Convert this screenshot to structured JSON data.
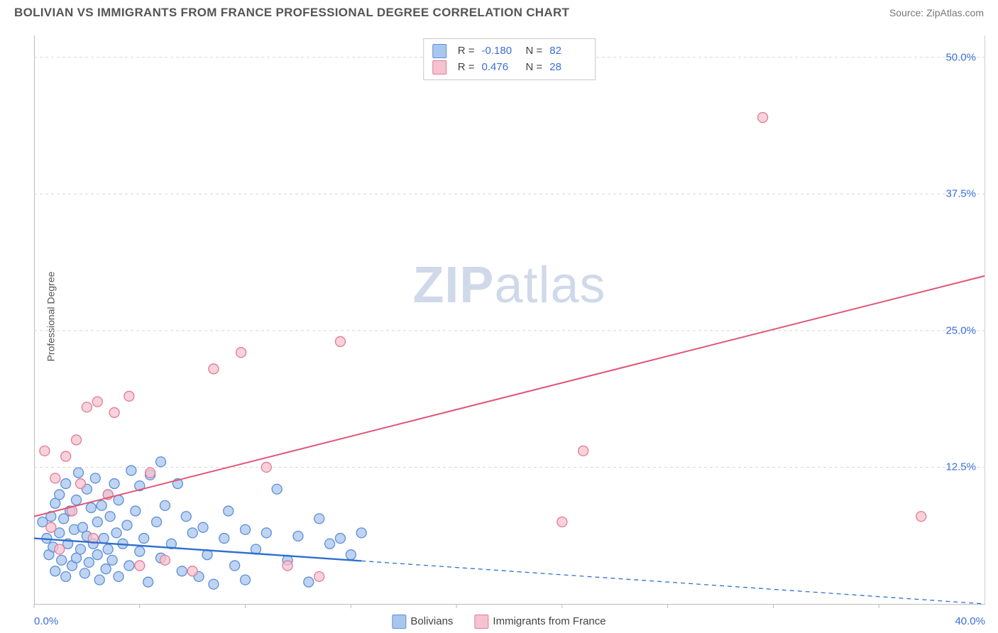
{
  "header": {
    "title": "BOLIVIAN VS IMMIGRANTS FROM FRANCE PROFESSIONAL DEGREE CORRELATION CHART",
    "source": "Source: ZipAtlas.com"
  },
  "ylabel": "Professional Degree",
  "watermark_a": "ZIP",
  "watermark_b": "atlas",
  "chart": {
    "type": "scatter",
    "xlim": [
      0,
      45
    ],
    "ylim": [
      0,
      52
    ],
    "ytick_values": [
      12.5,
      25.0,
      37.5,
      50.0
    ],
    "ytick_labels": [
      "12.5%",
      "25.0%",
      "37.5%",
      "50.0%"
    ],
    "xtick_values": [
      0,
      5,
      10,
      15,
      20,
      25,
      30,
      35,
      40
    ],
    "xaxis_label_left": "0.0%",
    "xaxis_label_right": "40.0%",
    "grid_color": "#d8d8d8",
    "axis_color": "#bbbbbb",
    "background_color": "#ffffff",
    "tick_label_color": "#3b6fd6",
    "series": {
      "bolivians": {
        "label": "Bolivians",
        "marker_fill": "#a9c6ed",
        "marker_stroke": "#5b8fd6",
        "marker_radius": 7,
        "line_color": "#2f6fd0",
        "line_width": 2.4,
        "dash_color": "#2f6fd0",
        "regression": {
          "x1": 0,
          "y1": 6.0,
          "x2": 45,
          "y2": 0.0,
          "solid_until_x": 15.5
        },
        "R": "-0.180",
        "N": "82",
        "points": [
          [
            0.4,
            7.5
          ],
          [
            0.6,
            6.0
          ],
          [
            0.7,
            4.5
          ],
          [
            0.8,
            8.0
          ],
          [
            0.9,
            5.2
          ],
          [
            1.0,
            9.2
          ],
          [
            1.0,
            3.0
          ],
          [
            1.2,
            6.5
          ],
          [
            1.2,
            10.0
          ],
          [
            1.3,
            4.0
          ],
          [
            1.4,
            7.8
          ],
          [
            1.5,
            11.0
          ],
          [
            1.5,
            2.5
          ],
          [
            1.6,
            5.5
          ],
          [
            1.7,
            8.5
          ],
          [
            1.8,
            3.5
          ],
          [
            1.9,
            6.8
          ],
          [
            2.0,
            9.5
          ],
          [
            2.0,
            4.2
          ],
          [
            2.1,
            12.0
          ],
          [
            2.2,
            5.0
          ],
          [
            2.3,
            7.0
          ],
          [
            2.4,
            2.8
          ],
          [
            2.5,
            10.5
          ],
          [
            2.5,
            6.2
          ],
          [
            2.6,
            3.8
          ],
          [
            2.7,
            8.8
          ],
          [
            2.8,
            5.5
          ],
          [
            2.9,
            11.5
          ],
          [
            3.0,
            4.5
          ],
          [
            3.0,
            7.5
          ],
          [
            3.1,
            2.2
          ],
          [
            3.2,
            9.0
          ],
          [
            3.3,
            6.0
          ],
          [
            3.4,
            3.2
          ],
          [
            3.5,
            10.0
          ],
          [
            3.5,
            5.0
          ],
          [
            3.6,
            8.0
          ],
          [
            3.7,
            4.0
          ],
          [
            3.8,
            11.0
          ],
          [
            3.9,
            6.5
          ],
          [
            4.0,
            2.5
          ],
          [
            4.0,
            9.5
          ],
          [
            4.2,
            5.5
          ],
          [
            4.4,
            7.2
          ],
          [
            4.5,
            3.5
          ],
          [
            4.6,
            12.2
          ],
          [
            4.8,
            8.5
          ],
          [
            5.0,
            4.8
          ],
          [
            5.0,
            10.8
          ],
          [
            5.2,
            6.0
          ],
          [
            5.4,
            2.0
          ],
          [
            5.5,
            11.8
          ],
          [
            5.8,
            7.5
          ],
          [
            6.0,
            4.2
          ],
          [
            6.0,
            13.0
          ],
          [
            6.2,
            9.0
          ],
          [
            6.5,
            5.5
          ],
          [
            6.8,
            11.0
          ],
          [
            7.0,
            3.0
          ],
          [
            7.2,
            8.0
          ],
          [
            7.5,
            6.5
          ],
          [
            7.8,
            2.5
          ],
          [
            8.0,
            7.0
          ],
          [
            8.2,
            4.5
          ],
          [
            8.5,
            1.8
          ],
          [
            9.0,
            6.0
          ],
          [
            9.2,
            8.5
          ],
          [
            9.5,
            3.5
          ],
          [
            10.0,
            6.8
          ],
          [
            10.0,
            2.2
          ],
          [
            10.5,
            5.0
          ],
          [
            11.0,
            6.5
          ],
          [
            11.5,
            10.5
          ],
          [
            12.0,
            4.0
          ],
          [
            12.5,
            6.2
          ],
          [
            13.0,
            2.0
          ],
          [
            13.5,
            7.8
          ],
          [
            14.0,
            5.5
          ],
          [
            14.5,
            6.0
          ],
          [
            15.0,
            4.5
          ],
          [
            15.5,
            6.5
          ]
        ]
      },
      "france": {
        "label": "Immigrants from France",
        "marker_fill": "#f4c3cf",
        "marker_stroke": "#e47a94",
        "marker_radius": 7,
        "line_color": "#e05577",
        "line_width": 2,
        "regression": {
          "x1": 0,
          "y1": 8.0,
          "x2": 45,
          "y2": 30.0
        },
        "R": "0.476",
        "N": "28",
        "points": [
          [
            0.5,
            14.0
          ],
          [
            0.8,
            7.0
          ],
          [
            1.0,
            11.5
          ],
          [
            1.2,
            5.0
          ],
          [
            1.5,
            13.5
          ],
          [
            1.8,
            8.5
          ],
          [
            2.0,
            15.0
          ],
          [
            2.2,
            11.0
          ],
          [
            2.5,
            18.0
          ],
          [
            2.8,
            6.0
          ],
          [
            3.0,
            18.5
          ],
          [
            3.5,
            10.0
          ],
          [
            3.8,
            17.5
          ],
          [
            4.5,
            19.0
          ],
          [
            5.0,
            3.5
          ],
          [
            5.5,
            12.0
          ],
          [
            6.2,
            4.0
          ],
          [
            7.5,
            3.0
          ],
          [
            8.5,
            21.5
          ],
          [
            9.8,
            23.0
          ],
          [
            11.0,
            12.5
          ],
          [
            12.0,
            3.5
          ],
          [
            13.5,
            2.5
          ],
          [
            14.5,
            24.0
          ],
          [
            25.0,
            7.5
          ],
          [
            26.0,
            14.0
          ],
          [
            34.5,
            44.5
          ],
          [
            42.0,
            8.0
          ]
        ]
      }
    }
  },
  "stats_box": {
    "rows": [
      {
        "swatch_fill": "#a9c6ed",
        "swatch_stroke": "#5b8fd6",
        "r_label": "R =",
        "r_val": "-0.180",
        "n_label": "N =",
        "n_val": "82"
      },
      {
        "swatch_fill": "#f4c3cf",
        "swatch_stroke": "#e47a94",
        "r_label": "R =",
        "r_val": " 0.476",
        "n_label": "N =",
        "n_val": "28"
      }
    ]
  },
  "legend_bottom": [
    {
      "swatch_fill": "#a9c6ed",
      "swatch_stroke": "#5b8fd6",
      "label": "Bolivians"
    },
    {
      "swatch_fill": "#f4c3cf",
      "swatch_stroke": "#e47a94",
      "label": "Immigrants from France"
    }
  ]
}
